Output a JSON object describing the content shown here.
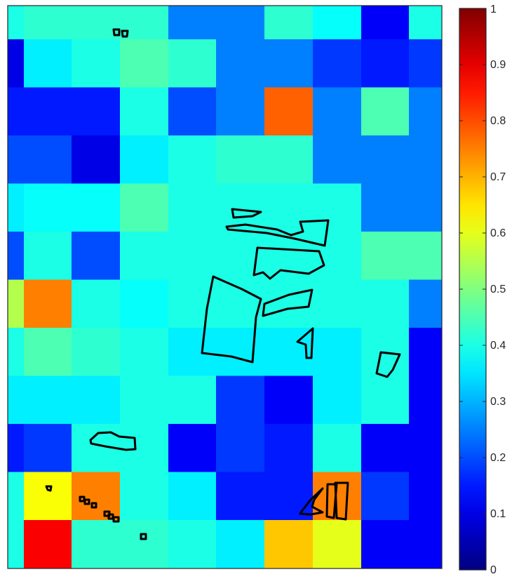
{
  "chart_data": {
    "type": "heatmap",
    "title": "",
    "xlabel": "",
    "ylabel": "",
    "grid": false,
    "n_rows": 12,
    "n_cols": 10,
    "values": [
      [
        0.4,
        0.42,
        0.42,
        0.42,
        0.25,
        0.25,
        0.42,
        0.38,
        0.12,
        0.4
      ],
      [
        0.1,
        0.36,
        0.4,
        0.45,
        0.42,
        0.25,
        0.25,
        0.18,
        0.15,
        0.18
      ],
      [
        0.15,
        0.15,
        0.15,
        0.4,
        0.2,
        0.25,
        0.78,
        0.25,
        0.45,
        0.25
      ],
      [
        0.2,
        0.2,
        0.1,
        0.36,
        0.4,
        0.42,
        0.42,
        0.25,
        0.25,
        0.25
      ],
      [
        0.36,
        0.38,
        0.38,
        0.45,
        0.4,
        0.4,
        0.4,
        0.4,
        0.25,
        0.25
      ],
      [
        0.2,
        0.4,
        0.2,
        0.4,
        0.4,
        0.4,
        0.4,
        0.4,
        0.45,
        0.45
      ],
      [
        0.55,
        0.75,
        0.4,
        0.38,
        0.4,
        0.4,
        0.4,
        0.4,
        0.4,
        0.25
      ],
      [
        0.4,
        0.45,
        0.42,
        0.4,
        0.36,
        0.36,
        0.36,
        0.36,
        0.4,
        0.12
      ],
      [
        0.36,
        0.36,
        0.36,
        0.4,
        0.4,
        0.18,
        0.12,
        0.36,
        0.4,
        0.12
      ],
      [
        0.15,
        0.18,
        0.4,
        0.4,
        0.12,
        0.18,
        0.15,
        0.4,
        0.12,
        0.12
      ],
      [
        0.4,
        0.62,
        0.75,
        0.4,
        0.36,
        0.15,
        0.15,
        0.75,
        0.18,
        0.12
      ],
      [
        0.4,
        0.88,
        0.42,
        0.42,
        0.4,
        0.36,
        0.68,
        0.6,
        0.12,
        0.12
      ]
    ],
    "colorbar": {
      "colormap": "jet",
      "range": [
        0,
        1
      ],
      "ticks": [
        0,
        0.1,
        0.2,
        0.3,
        0.4,
        0.5,
        0.6,
        0.7,
        0.8,
        0.9,
        1
      ],
      "tick_labels": [
        "0",
        "0.1",
        "0.2",
        "0.3",
        "0.4",
        "0.5",
        "0.6",
        "0.7",
        "0.8",
        "0.9",
        "1"
      ]
    },
    "overlay": "black outline polygons of land areas"
  }
}
